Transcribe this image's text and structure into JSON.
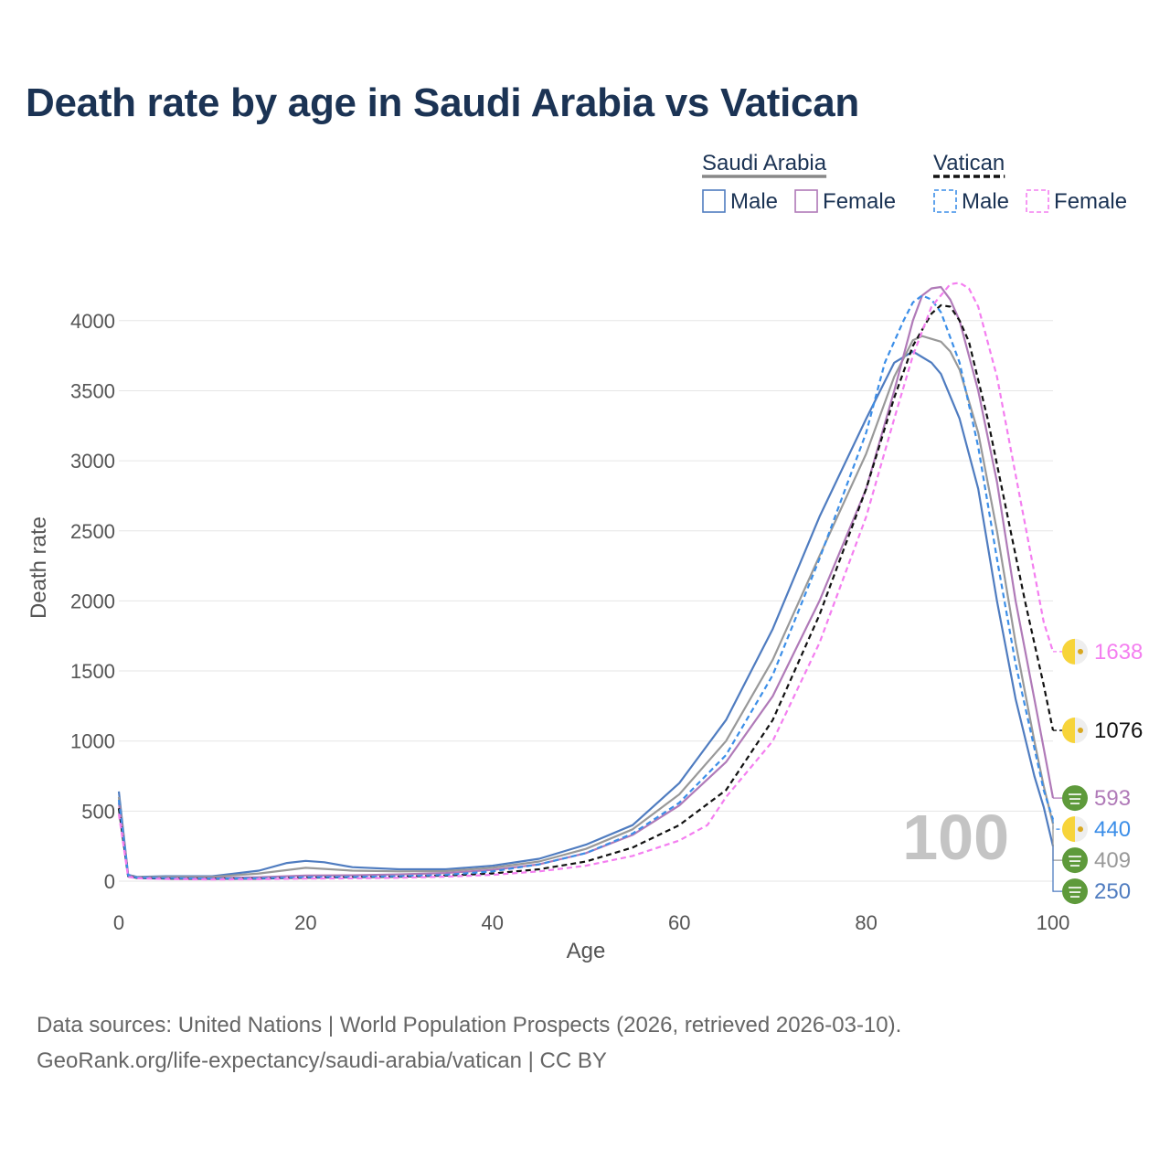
{
  "title": "Death rate by age in Saudi Arabia vs Vatican",
  "footer": {
    "source": "Data sources: United Nations | World Population Prospects (2026, retrieved 2026-03-10).",
    "credit": "GeoRank.org/life-expectancy/saudi-arabia/vatican | CC BY"
  },
  "legend": {
    "groups": [
      {
        "name": "Saudi Arabia",
        "line_color": "#888888",
        "dashed": false,
        "items": [
          {
            "label": "Male",
            "color": "#4f7cc0"
          },
          {
            "label": "Female",
            "color": "#b07ab8"
          }
        ]
      },
      {
        "name": "Vatican",
        "line_color": "#111111",
        "dashed": true,
        "items": [
          {
            "label": "Male",
            "color": "#3b8ee8"
          },
          {
            "label": "Female",
            "color": "#f47ef0"
          }
        ]
      }
    ]
  },
  "chart_data": {
    "type": "line",
    "title": "Death rate by age in Saudi Arabia vs Vatican",
    "xlabel": "Age",
    "ylabel": "Death rate",
    "xlim": [
      0,
      100
    ],
    "ylim": [
      0,
      4250
    ],
    "xticks": [
      0,
      20,
      40,
      60,
      80,
      100
    ],
    "yticks": [
      0,
      500,
      1000,
      1500,
      2000,
      2500,
      3000,
      3500,
      4000
    ],
    "grid": true,
    "watermark": "100",
    "series": [
      {
        "name": "Saudi Arabia Male",
        "color": "#4f7cc0",
        "dashed": false,
        "end_label": "250",
        "flag": "sa",
        "points": [
          [
            0,
            640
          ],
          [
            1,
            45
          ],
          [
            2,
            30
          ],
          [
            5,
            35
          ],
          [
            10,
            35
          ],
          [
            15,
            75
          ],
          [
            18,
            130
          ],
          [
            20,
            145
          ],
          [
            22,
            135
          ],
          [
            25,
            100
          ],
          [
            30,
            85
          ],
          [
            35,
            85
          ],
          [
            40,
            110
          ],
          [
            45,
            160
          ],
          [
            50,
            260
          ],
          [
            55,
            400
          ],
          [
            60,
            700
          ],
          [
            65,
            1150
          ],
          [
            70,
            1800
          ],
          [
            75,
            2600
          ],
          [
            80,
            3300
          ],
          [
            83,
            3700
          ],
          [
            85,
            3780
          ],
          [
            87,
            3700
          ],
          [
            88,
            3620
          ],
          [
            90,
            3300
          ],
          [
            92,
            2800
          ],
          [
            94,
            2000
          ],
          [
            96,
            1300
          ],
          [
            98,
            750
          ],
          [
            99,
            530
          ],
          [
            100,
            250
          ]
        ]
      },
      {
        "name": "Saudi Arabia Total",
        "color": "#999999",
        "dashed": false,
        "end_label": "409",
        "flag": "sa",
        "points": [
          [
            0,
            600
          ],
          [
            1,
            40
          ],
          [
            2,
            28
          ],
          [
            5,
            30
          ],
          [
            10,
            30
          ],
          [
            15,
            55
          ],
          [
            20,
            95
          ],
          [
            25,
            75
          ],
          [
            30,
            70
          ],
          [
            35,
            72
          ],
          [
            40,
            95
          ],
          [
            45,
            140
          ],
          [
            50,
            230
          ],
          [
            55,
            370
          ],
          [
            60,
            620
          ],
          [
            65,
            1000
          ],
          [
            70,
            1580
          ],
          [
            75,
            2320
          ],
          [
            80,
            3050
          ],
          [
            83,
            3600
          ],
          [
            85,
            3860
          ],
          [
            86,
            3890
          ],
          [
            88,
            3850
          ],
          [
            89,
            3780
          ],
          [
            90,
            3650
          ],
          [
            92,
            3200
          ],
          [
            94,
            2500
          ],
          [
            96,
            1700
          ],
          [
            98,
            1000
          ],
          [
            99,
            680
          ],
          [
            100,
            409
          ]
        ]
      },
      {
        "name": "Saudi Arabia Female",
        "color": "#b07ab8",
        "dashed": false,
        "end_label": "593",
        "flag": "sa",
        "points": [
          [
            0,
            560
          ],
          [
            1,
            38
          ],
          [
            2,
            25
          ],
          [
            5,
            22
          ],
          [
            10,
            20
          ],
          [
            15,
            28
          ],
          [
            20,
            40
          ],
          [
            25,
            42
          ],
          [
            30,
            48
          ],
          [
            35,
            58
          ],
          [
            40,
            80
          ],
          [
            45,
            120
          ],
          [
            50,
            200
          ],
          [
            55,
            330
          ],
          [
            60,
            540
          ],
          [
            65,
            850
          ],
          [
            70,
            1320
          ],
          [
            75,
            2000
          ],
          [
            80,
            2800
          ],
          [
            83,
            3500
          ],
          [
            85,
            4000
          ],
          [
            86,
            4180
          ],
          [
            87,
            4230
          ],
          [
            88,
            4240
          ],
          [
            89,
            4150
          ],
          [
            90,
            4000
          ],
          [
            92,
            3500
          ],
          [
            94,
            2850
          ],
          [
            96,
            2000
          ],
          [
            98,
            1300
          ],
          [
            99,
            950
          ],
          [
            100,
            593
          ]
        ]
      },
      {
        "name": "Vatican Total",
        "color": "#111111",
        "dashed": true,
        "end_label": "1076",
        "flag": "va",
        "points": [
          [
            0,
            520
          ],
          [
            1,
            35
          ],
          [
            2,
            22
          ],
          [
            5,
            18
          ],
          [
            10,
            16
          ],
          [
            15,
            18
          ],
          [
            20,
            25
          ],
          [
            25,
            28
          ],
          [
            30,
            32
          ],
          [
            35,
            40
          ],
          [
            40,
            55
          ],
          [
            45,
            85
          ],
          [
            50,
            140
          ],
          [
            55,
            240
          ],
          [
            60,
            400
          ],
          [
            65,
            650
          ],
          [
            70,
            1150
          ],
          [
            75,
            1900
          ],
          [
            80,
            2800
          ],
          [
            83,
            3450
          ],
          [
            85,
            3820
          ],
          [
            87,
            4050
          ],
          [
            88,
            4110
          ],
          [
            89,
            4100
          ],
          [
            90,
            4000
          ],
          [
            91,
            3850
          ],
          [
            93,
            3300
          ],
          [
            95,
            2650
          ],
          [
            97,
            2000
          ],
          [
            99,
            1400
          ],
          [
            100,
            1076
          ]
        ]
      },
      {
        "name": "Vatican Male",
        "color": "#3b8ee8",
        "dashed": true,
        "end_label": "440",
        "flag": "va",
        "points": [
          [
            0,
            580
          ],
          [
            1,
            40
          ],
          [
            2,
            25
          ],
          [
            5,
            22
          ],
          [
            10,
            18
          ],
          [
            15,
            20
          ],
          [
            20,
            28
          ],
          [
            25,
            30
          ],
          [
            30,
            35
          ],
          [
            35,
            45
          ],
          [
            40,
            70
          ],
          [
            45,
            120
          ],
          [
            50,
            200
          ],
          [
            55,
            340
          ],
          [
            60,
            560
          ],
          [
            65,
            900
          ],
          [
            70,
            1470
          ],
          [
            75,
            2300
          ],
          [
            80,
            3200
          ],
          [
            82,
            3700
          ],
          [
            84,
            4000
          ],
          [
            85,
            4130
          ],
          [
            86,
            4180
          ],
          [
            87,
            4150
          ],
          [
            88,
            4060
          ],
          [
            90,
            3700
          ],
          [
            92,
            3100
          ],
          [
            94,
            2300
          ],
          [
            96,
            1550
          ],
          [
            98,
            950
          ],
          [
            99,
            650
          ],
          [
            100,
            440
          ]
        ]
      },
      {
        "name": "Vatican Female",
        "color": "#f47ef0",
        "dashed": true,
        "end_label": "1638",
        "flag": "va",
        "points": [
          [
            0,
            480
          ],
          [
            1,
            30
          ],
          [
            2,
            20
          ],
          [
            5,
            15
          ],
          [
            10,
            12
          ],
          [
            15,
            14
          ],
          [
            20,
            18
          ],
          [
            25,
            20
          ],
          [
            30,
            24
          ],
          [
            35,
            32
          ],
          [
            40,
            45
          ],
          [
            45,
            70
          ],
          [
            50,
            110
          ],
          [
            55,
            180
          ],
          [
            60,
            290
          ],
          [
            63,
            400
          ],
          [
            65,
            600
          ],
          [
            70,
            1000
          ],
          [
            75,
            1700
          ],
          [
            80,
            2600
          ],
          [
            83,
            3300
          ],
          [
            85,
            3750
          ],
          [
            87,
            4100
          ],
          [
            89,
            4260
          ],
          [
            90,
            4270
          ],
          [
            91,
            4230
          ],
          [
            92,
            4100
          ],
          [
            94,
            3600
          ],
          [
            96,
            2900
          ],
          [
            98,
            2200
          ],
          [
            99,
            1850
          ],
          [
            100,
            1638
          ]
        ]
      }
    ]
  }
}
